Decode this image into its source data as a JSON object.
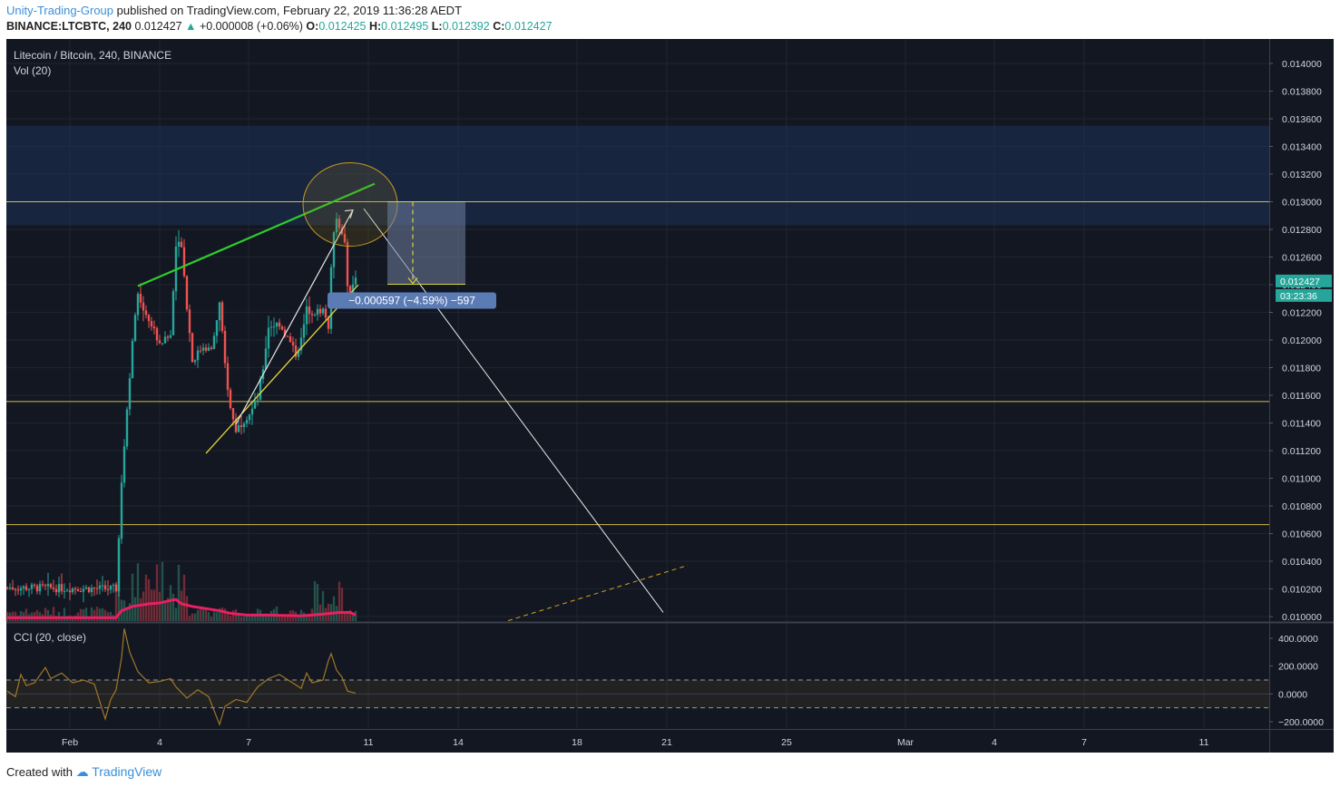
{
  "header": {
    "author": "Unity-Trading-Group",
    "published_text": "published on TradingView.com, February 22, 2019 11:36:28 AEDT",
    "symbol_line": "BINANCE:LTCBTC, 240",
    "last": "0.012427",
    "change": "+0.000008 (+0.06%)",
    "o_label": "O:",
    "o_value": "0.012425",
    "h_label": "H:",
    "h_value": "0.012495",
    "l_label": "L:",
    "l_value": "0.012392",
    "c_label": "C:",
    "c_value": "0.012427"
  },
  "legend": {
    "title": "Litecoin / Bitcoin, 240, BINANCE",
    "volume": "Vol (20)",
    "indicator": "CCI (20, close)"
  },
  "footer": {
    "created_with": "Created with",
    "brand": "TradingView"
  },
  "badges": {
    "price": "0.012427",
    "countdown": "03:23:36"
  },
  "measure": {
    "label": "−0.000597 (−4.59%) −597"
  },
  "colors": {
    "background": "#131722",
    "bull": "#26a69a",
    "bear": "#ef5350",
    "level_line": "#d4b84a",
    "trend_green": "#2ecc2e",
    "channel_yellow": "#e6d83a",
    "volume_ma": "#e91e63",
    "cci_line": "#a07828",
    "measure_box": "#6f7fa0",
    "measure_label": "#5b7bb5"
  },
  "chart_data": [
    {
      "type": "candlestick",
      "title": "Litecoin / Bitcoin, 240, BINANCE",
      "x_ticks": [
        "Feb",
        "4",
        "7",
        "11",
        "14",
        "18",
        "21",
        "25",
        "Mar",
        "4",
        "7",
        "11"
      ],
      "y_ticks": [
        "0.014000",
        "0.013800",
        "0.013600",
        "0.013400",
        "0.013200",
        "0.013000",
        "0.012800",
        "0.012600",
        "0.012400",
        "0.012200",
        "0.012000",
        "0.011800",
        "0.011600",
        "0.011400",
        "0.011200",
        "0.011000",
        "0.010800",
        "0.010600",
        "0.010400",
        "0.010200",
        "0.010000"
      ],
      "ylim": [
        0.0099,
        0.0142
      ],
      "grid": true,
      "horizontal_levels": [
        0.013,
        0.011555,
        0.010665
      ],
      "resistance_zone": [
        0.01283,
        0.01355
      ],
      "ohlc_knots": [
        [
          0,
          0.01021
        ],
        [
          40,
          0.0102
        ],
        [
          42,
          0.01098
        ],
        [
          44,
          0.0115
        ],
        [
          46,
          0.012
        ],
        [
          48,
          0.01232
        ],
        [
          52,
          0.01215
        ],
        [
          56,
          0.01198
        ],
        [
          60,
          0.01203
        ],
        [
          62,
          0.01268
        ],
        [
          64,
          0.0127
        ],
        [
          66,
          0.01225
        ],
        [
          68,
          0.01185
        ],
        [
          72,
          0.01196
        ],
        [
          75,
          0.01192
        ],
        [
          78,
          0.01226
        ],
        [
          80,
          0.01182
        ],
        [
          82,
          0.0115
        ],
        [
          84,
          0.01135
        ],
        [
          88,
          0.01145
        ],
        [
          90,
          0.0115
        ],
        [
          92,
          0.01158
        ],
        [
          94,
          0.0118
        ],
        [
          96,
          0.0121
        ],
        [
          100,
          0.01212
        ],
        [
          102,
          0.01205
        ],
        [
          104,
          0.01198
        ],
        [
          106,
          0.0119
        ],
        [
          108,
          0.012
        ],
        [
          110,
          0.01222
        ],
        [
          113,
          0.0122
        ],
        [
          116,
          0.01222
        ],
        [
          118,
          0.0121
        ],
        [
          119,
          0.0125
        ],
        [
          120,
          0.0128
        ],
        [
          121,
          0.0129
        ],
        [
          122,
          0.01283
        ],
        [
          124,
          0.01268
        ],
        [
          125,
          0.0124
        ],
        [
          126,
          0.01235
        ],
        [
          128,
          0.01243
        ]
      ],
      "volume_ma": [
        [
          0,
          0.04
        ],
        [
          40,
          0.04
        ],
        [
          42,
          0.12
        ],
        [
          46,
          0.17
        ],
        [
          52,
          0.2
        ],
        [
          56,
          0.21
        ],
        [
          60,
          0.24
        ],
        [
          62,
          0.25
        ],
        [
          64,
          0.2
        ],
        [
          68,
          0.17
        ],
        [
          74,
          0.14
        ],
        [
          78,
          0.12
        ],
        [
          82,
          0.09
        ],
        [
          88,
          0.07
        ],
        [
          96,
          0.07
        ],
        [
          108,
          0.06
        ],
        [
          116,
          0.08
        ],
        [
          122,
          0.1
        ],
        [
          126,
          0.1
        ],
        [
          128,
          0.07
        ]
      ],
      "cci": {
        "ylim": [
          -250,
          480
        ],
        "y_ticks": [
          "400.0000",
          "200.0000",
          "0.0000",
          "−200.0000"
        ],
        "bands": [
          100,
          -100
        ],
        "series": [
          [
            0,
            20
          ],
          [
            3,
            -20
          ],
          [
            5,
            140
          ],
          [
            7,
            60
          ],
          [
            10,
            80
          ],
          [
            14,
            190
          ],
          [
            16,
            110
          ],
          [
            20,
            150
          ],
          [
            24,
            80
          ],
          [
            28,
            100
          ],
          [
            32,
            70
          ],
          [
            36,
            -180
          ],
          [
            38,
            -40
          ],
          [
            40,
            30
          ],
          [
            42,
            260
          ],
          [
            43,
            470
          ],
          [
            45,
            300
          ],
          [
            48,
            160
          ],
          [
            52,
            80
          ],
          [
            56,
            90
          ],
          [
            60,
            110
          ],
          [
            62,
            50
          ],
          [
            66,
            -30
          ],
          [
            70,
            30
          ],
          [
            74,
            -20
          ],
          [
            78,
            -220
          ],
          [
            80,
            -90
          ],
          [
            84,
            -40
          ],
          [
            88,
            -60
          ],
          [
            92,
            50
          ],
          [
            96,
            110
          ],
          [
            100,
            140
          ],
          [
            104,
            90
          ],
          [
            108,
            40
          ],
          [
            110,
            150
          ],
          [
            112,
            80
          ],
          [
            116,
            100
          ],
          [
            118,
            240
          ],
          [
            119,
            290
          ],
          [
            121,
            170
          ],
          [
            123,
            120
          ],
          [
            125,
            20
          ],
          [
            128,
            5
          ]
        ]
      },
      "annotations": {
        "trend_line_green": [
          [
            48,
            0.01239
          ],
          [
            135,
            0.01313
          ]
        ],
        "channel_line_yellow": [
          [
            73,
            0.01118
          ],
          [
            129,
            0.0124
          ]
        ],
        "arrow_white": [
          [
            84,
            0.01139
          ],
          [
            127,
            0.01294
          ]
        ],
        "projection_line_white": [
          [
            131,
            0.01295
          ],
          [
            241,
            0.01003
          ]
        ],
        "future_trend_dashed": [
          [
            184,
            0.00997
          ],
          [
            250,
            0.01037
          ]
        ],
        "ellipse_center": [
          126,
          0.01298
        ],
        "measure": {
          "from": 0.013,
          "to": 0.012403,
          "x_range": [
            138,
            155
          ],
          "label": "−0.000597 (−4.59%) −597"
        }
      }
    }
  ]
}
